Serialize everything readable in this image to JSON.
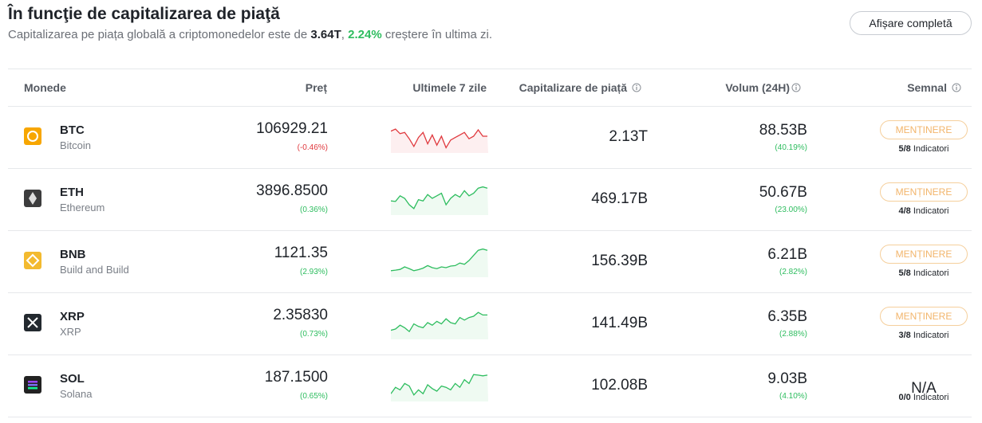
{
  "header": {
    "title": "În funcţie de capitalizarea de piaţă",
    "subtitle": {
      "before": "Capitalizarea pe piața globală a criptomonedelor este de",
      "market_cap": "3.64T",
      "separator": ",",
      "change": "2.24%",
      "after": "creștere în ultima zi."
    },
    "button": "Afișare completă"
  },
  "table": {
    "columns": [
      "Monede",
      "Preț",
      "Ultimele 7 zile",
      "Capitalizare de piață",
      "Volum (24H)",
      "Semnal"
    ],
    "rows": [
      {
        "symbol": "BTC",
        "name": "Bitcoin",
        "price": "106929.21",
        "price_change": "(-0.46%)",
        "market_cap": "2.13T",
        "volume": "88.53B",
        "volume_change": "(40.19%)",
        "signal": "MENȚINERE",
        "indicators": "5/8",
        "indicators_label": "Indicatori"
      },
      {
        "symbol": "ETH",
        "name": "Ethereum",
        "price": "3896.8500",
        "price_change": "(0.36%)",
        "market_cap": "469.17B",
        "volume": "50.67B",
        "volume_change": "(23.00%)",
        "signal": "MENȚINERE",
        "indicators": "4/8",
        "indicators_label": "Indicatori"
      },
      {
        "symbol": "BNB",
        "name": "Build and Build",
        "price": "1121.35",
        "price_change": "(2.93%)",
        "market_cap": "156.39B",
        "volume": "6.21B",
        "volume_change": "(2.82%)",
        "signal": "MENȚINERE",
        "indicators": "5/8",
        "indicators_label": "Indicatori"
      },
      {
        "symbol": "XRP",
        "name": "XRP",
        "price": "2.35830",
        "price_change": "(0.73%)",
        "market_cap": "141.49B",
        "volume": "6.35B",
        "volume_change": "(2.88%)",
        "signal": "MENȚINERE",
        "indicators": "3/8",
        "indicators_label": "Indicatori"
      },
      {
        "symbol": "SOL",
        "name": "Solana",
        "price": "187.1500",
        "price_change": "(0.65%)",
        "market_cap": "102.08B",
        "volume": "9.03B",
        "volume_change": "(4.10%)",
        "signal": "N/A",
        "indicators": "0/0",
        "indicators_label": "Indicatori"
      }
    ]
  }
}
